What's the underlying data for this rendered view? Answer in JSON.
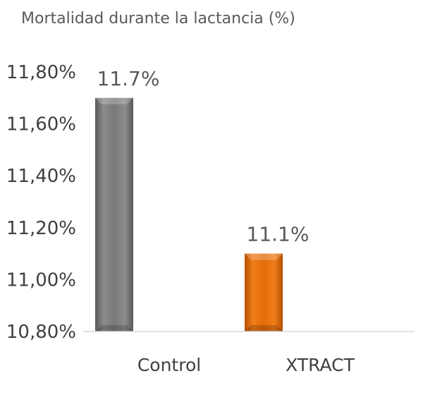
{
  "chart_data": {
    "type": "bar",
    "title": "Mortalidad durante la lactancia (%)",
    "categories": [
      "Control",
      "XTRACT"
    ],
    "values": [
      11.7,
      11.1
    ],
    "data_labels": [
      "11.7%",
      "11.1%"
    ],
    "bar_colors": [
      "#808080",
      "#E36C0A"
    ],
    "ylim": [
      10.8,
      11.8
    ],
    "yticks": [
      {
        "value": 11.8,
        "label": "11,80%"
      },
      {
        "value": 11.6,
        "label": "11,60%"
      },
      {
        "value": 11.4,
        "label": "11,40%"
      },
      {
        "value": 11.2,
        "label": "11,20%"
      },
      {
        "value": 11.0,
        "label": "11,00%"
      },
      {
        "value": 10.8,
        "label": "10,80%"
      }
    ],
    "grid": false,
    "legend": "none"
  }
}
